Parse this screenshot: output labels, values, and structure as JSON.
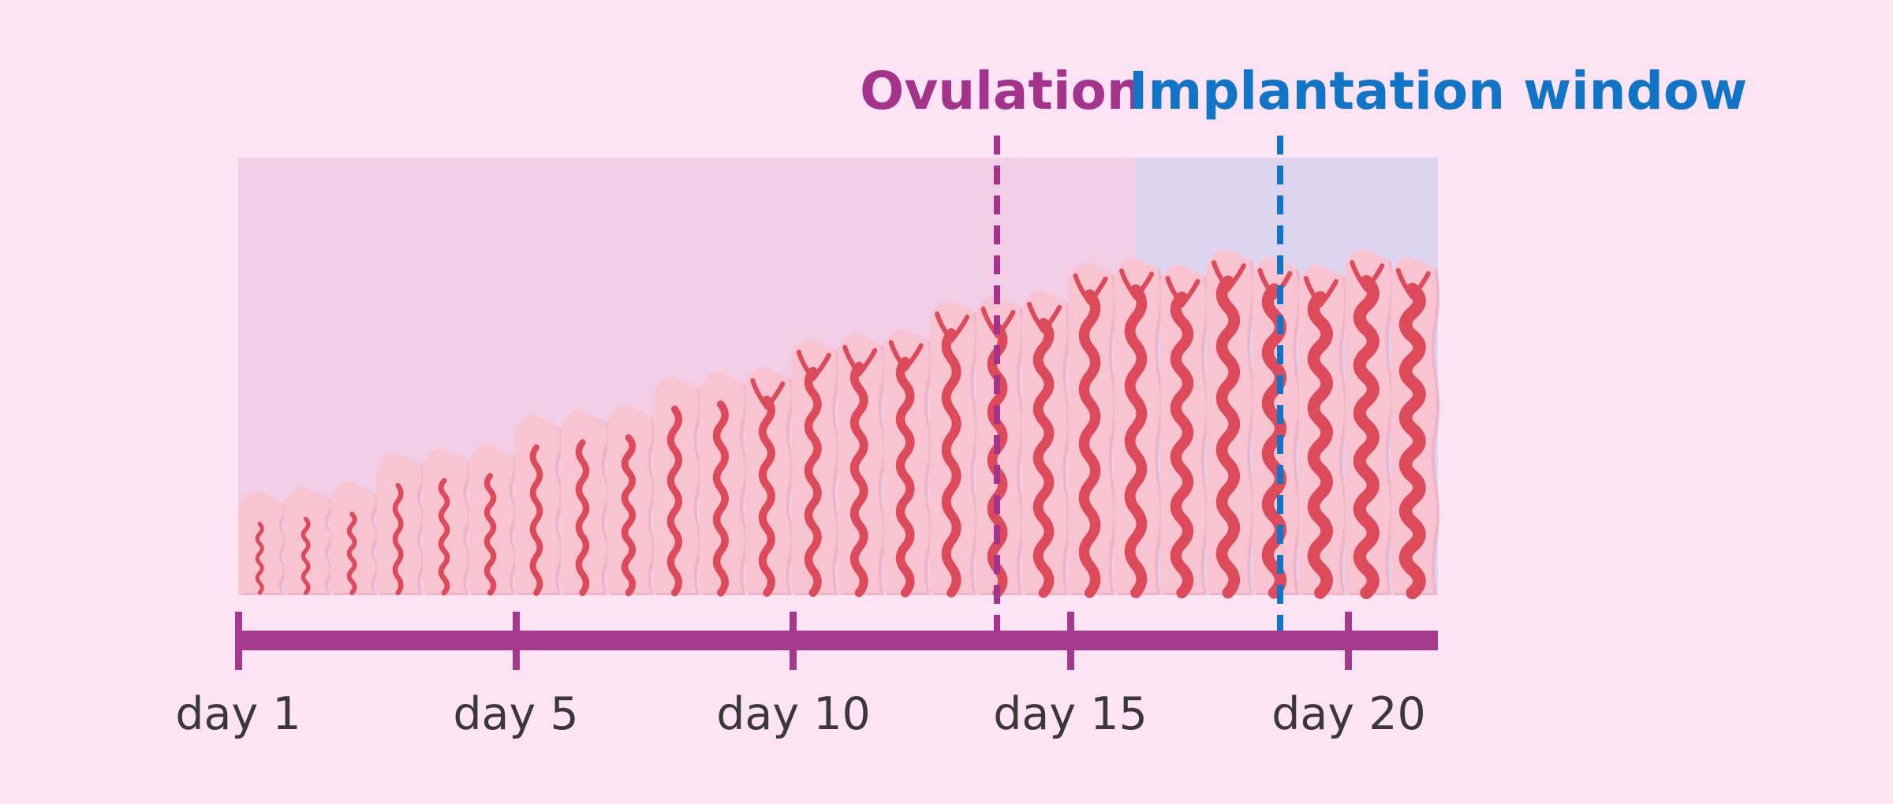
{
  "labels": {
    "ovulation": "Ovulation",
    "implantation_window": "Implantation window"
  },
  "days": [
    "day 1",
    "day 5",
    "day 10",
    "day 15",
    "day 20"
  ],
  "colors": {
    "background": "#fce4f5",
    "phase_pink": "#f2cde6",
    "phase_blue": "#ddd5ef",
    "tissue": "#f9c4d2",
    "tissue_shadow": "#f0b4c8",
    "vessel": "#dd4a5a",
    "timeline": "#a53a8d",
    "ovulation": "#a4338b",
    "implantation": "#1075c6",
    "day_text": "#3b3838"
  }
}
